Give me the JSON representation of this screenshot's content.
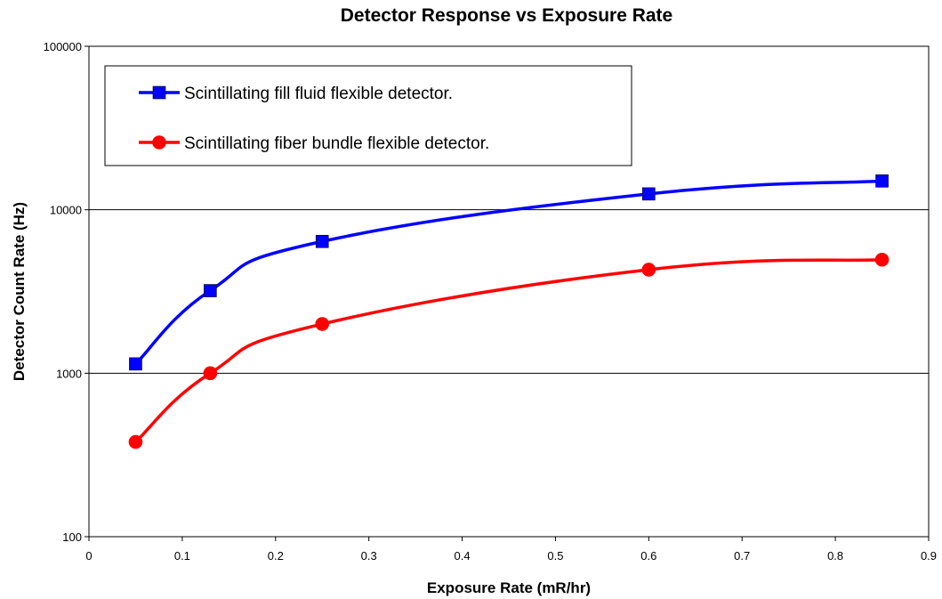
{
  "chart_data": {
    "type": "line",
    "title": "Detector Response vs Exposure Rate",
    "xlabel": "Exposure Rate (mR/hr)",
    "ylabel": "Detector Count Rate (Hz)",
    "xlim": [
      0,
      0.9
    ],
    "ylim": [
      100,
      100000
    ],
    "yscale": "log",
    "x_ticks": [
      "0",
      "0.1",
      "0.2",
      "0.3",
      "0.4",
      "0.5",
      "0.6",
      "0.7",
      "0.8",
      "0.9"
    ],
    "y_ticks": [
      "100",
      "1000",
      "10000",
      "100000"
    ],
    "grid": "horizontal major",
    "legend_position": "top-left",
    "series": [
      {
        "name": "Scintillating fill fluid flexible detector.",
        "color": "#0000ff",
        "marker": "square",
        "x": [
          0.05,
          0.13,
          0.25,
          0.6,
          0.85
        ],
        "y": [
          1140,
          3200,
          6400,
          12500,
          15000
        ]
      },
      {
        "name": "Scintillating fiber bundle flexible detector.",
        "color": "#ff0000",
        "marker": "circle",
        "x": [
          0.05,
          0.13,
          0.25,
          0.6,
          0.85
        ],
        "y": [
          380,
          1000,
          2000,
          4300,
          4950
        ]
      }
    ]
  }
}
